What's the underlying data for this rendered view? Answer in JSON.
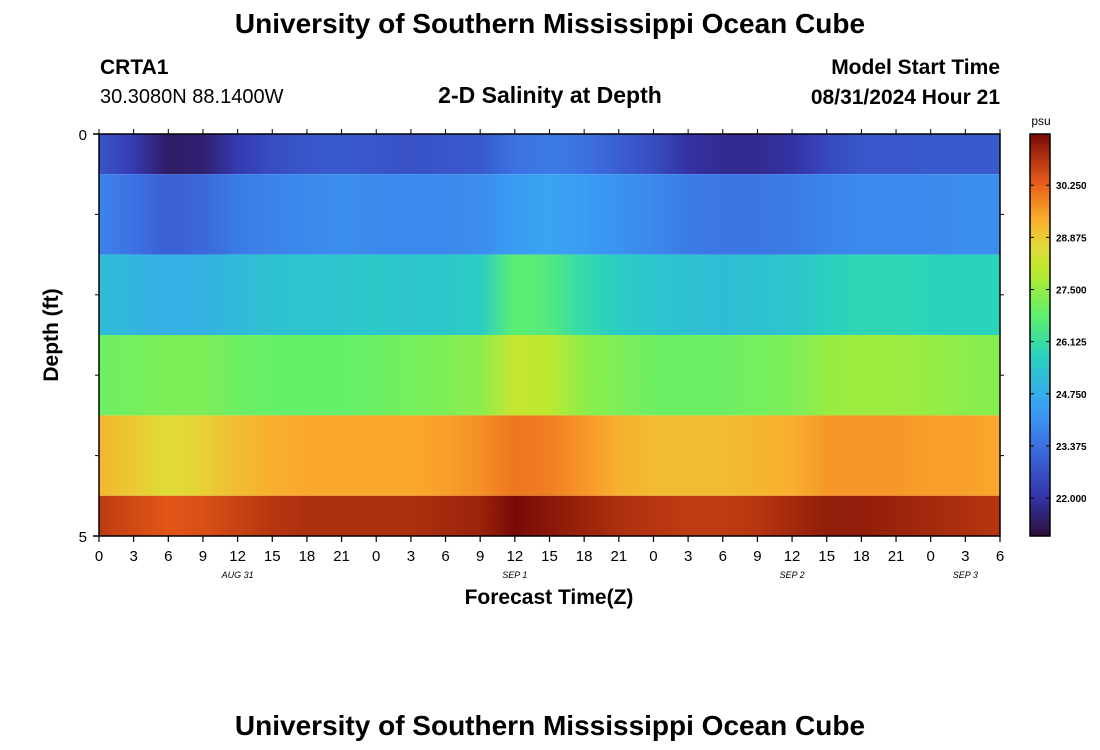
{
  "header": {
    "title": "University of Southern Mississippi Ocean Cube",
    "station": "CRTA1",
    "coords": "30.3080N  88.1400W",
    "subtitle": "2-D Salinity at Depth",
    "model_start_label": "Model Start Time",
    "model_start_value": "08/31/2024 Hour 21"
  },
  "footer": {
    "title": "University of Southern Mississippi Ocean Cube"
  },
  "chart_data": {
    "type": "heatmap",
    "title": "2-D Salinity at Depth",
    "xlabel": "Forecast Time(Z)",
    "ylabel": "Depth (ft)",
    "ylim": [
      0,
      5
    ],
    "y_tick_labels": [
      "0",
      "5"
    ],
    "y_minor_ticks": [
      1,
      2,
      3,
      4
    ],
    "x_tick_labels": [
      "0",
      "3",
      "6",
      "9",
      "12",
      "15",
      "18",
      "21",
      "0",
      "3",
      "6",
      "9",
      "12",
      "15",
      "18",
      "21",
      "0",
      "3",
      "6",
      "9",
      "12",
      "15",
      "18",
      "21",
      "0",
      "3",
      "6"
    ],
    "date_labels": [
      {
        "label": "AUG 31",
        "hour_index": 4
      },
      {
        "label": "SEP 1",
        "hour_index": 12
      },
      {
        "label": "SEP 2",
        "hour_index": 20
      },
      {
        "label": "SEP 3",
        "hour_index": 25
      }
    ],
    "hours": [
      0,
      3,
      6,
      9,
      12,
      15,
      18,
      21,
      24,
      27,
      30,
      33,
      36,
      39,
      42,
      45,
      48,
      51,
      54,
      57,
      60,
      63,
      66,
      69,
      72,
      75,
      78
    ],
    "layers": [
      {
        "depth_range": [
          0,
          0.5
        ],
        "values": [
          22.8,
          22.2,
          21.4,
          21.5,
          22.2,
          22.6,
          22.8,
          22.9,
          22.8,
          22.7,
          22.8,
          22.9,
          23.4,
          23.6,
          23.4,
          23.0,
          22.6,
          22.0,
          21.8,
          21.8,
          22.0,
          22.5,
          22.8,
          22.8,
          22.9,
          22.9,
          22.9
        ]
      },
      {
        "depth_range": [
          0.5,
          1.5
        ],
        "values": [
          23.8,
          23.4,
          23.0,
          23.2,
          23.6,
          23.8,
          23.9,
          24.0,
          23.9,
          23.9,
          23.9,
          24.0,
          24.3,
          24.5,
          24.3,
          24.1,
          23.9,
          23.6,
          23.5,
          23.5,
          23.6,
          23.8,
          23.9,
          23.9,
          23.9,
          24.0,
          24.0
        ]
      },
      {
        "depth_range": [
          1.5,
          2.5
        ],
        "values": [
          25.2,
          25.0,
          24.8,
          24.9,
          25.1,
          25.3,
          25.4,
          25.4,
          25.5,
          25.4,
          25.5,
          25.6,
          26.8,
          26.6,
          26.0,
          25.6,
          25.4,
          25.3,
          25.2,
          25.3,
          25.4,
          25.7,
          25.9,
          25.9,
          25.8,
          25.8,
          25.8
        ]
      },
      {
        "depth_range": [
          2.5,
          3.5
        ],
        "values": [
          27.0,
          27.1,
          27.2,
          27.2,
          27.0,
          26.9,
          26.9,
          26.9,
          27.0,
          27.1,
          27.2,
          27.4,
          28.2,
          28.0,
          27.4,
          27.2,
          27.0,
          27.0,
          27.0,
          27.1,
          27.2,
          27.5,
          27.6,
          27.6,
          27.5,
          27.4,
          27.3
        ]
      },
      {
        "depth_range": [
          3.5,
          4.5
        ],
        "values": [
          29.2,
          28.9,
          28.6,
          28.8,
          29.1,
          29.3,
          29.4,
          29.4,
          29.4,
          29.4,
          29.5,
          29.7,
          30.0,
          29.9,
          29.6,
          29.3,
          29.1,
          29.1,
          29.1,
          29.2,
          29.3,
          29.6,
          29.6,
          29.6,
          29.5,
          29.5,
          29.4
        ]
      },
      {
        "depth_range": [
          4.5,
          5
        ],
        "values": [
          30.8,
          30.6,
          30.4,
          30.5,
          30.7,
          30.9,
          31.0,
          31.0,
          31.0,
          31.0,
          31.1,
          31.2,
          31.6,
          31.4,
          31.2,
          31.0,
          30.9,
          30.8,
          30.8,
          30.9,
          31.1,
          31.3,
          31.3,
          31.2,
          31.1,
          31.0,
          30.9
        ]
      }
    ],
    "colorbar": {
      "unit": "psu",
      "ticks": [
        "30.250",
        "28.875",
        "27.500",
        "26.125",
        "24.750",
        "23.375",
        "22.000"
      ],
      "tick_values": [
        30.25,
        28.875,
        27.5,
        26.125,
        24.75,
        23.375,
        22.0
      ],
      "range": [
        21.0,
        31.6
      ]
    }
  }
}
